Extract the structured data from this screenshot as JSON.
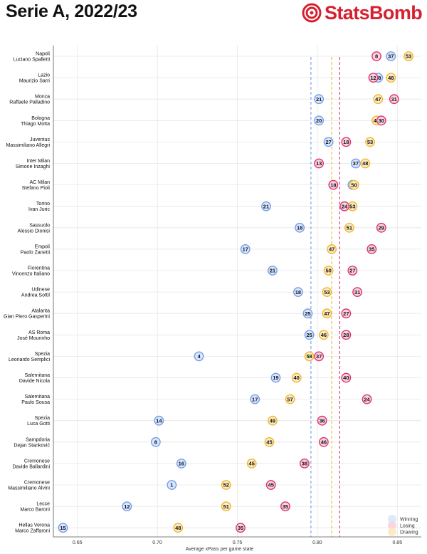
{
  "header": {
    "title": "Serie A, 2022/23",
    "logo_text": "StatsBomb"
  },
  "colors": {
    "winning": "#6f9ef0",
    "winning_fill": "#dbe6fb",
    "losing": "#e0306e",
    "losing_fill": "#f8d3e1",
    "drawing": "#f2b630",
    "drawing_fill": "#fcebc0",
    "brand": "#d62030"
  },
  "chart_data": {
    "type": "scatter",
    "xlabel": "Average xPass per game state",
    "xlim": [
      0.635,
      0.865
    ],
    "xticks": [
      "0.65",
      "0.70",
      "0.75",
      "0.80",
      "0.85"
    ],
    "xtick_values": [
      0.65,
      0.7,
      0.75,
      0.8,
      0.85
    ],
    "legend_position": "bottom-right",
    "legend": [
      {
        "key": "winning",
        "label": "Winning"
      },
      {
        "key": "losing",
        "label": "Losing"
      },
      {
        "key": "drawing",
        "label": "Drawing"
      }
    ],
    "reference_lines": [
      {
        "state": "winning",
        "value": 0.796
      },
      {
        "state": "drawing",
        "value": 0.809
      },
      {
        "state": "losing",
        "value": 0.814
      }
    ],
    "rows": [
      {
        "team": "Napoli",
        "coach": "Luciano Spalletti",
        "winning": {
          "x": 0.846,
          "n": 37
        },
        "losing": {
          "x": 0.837,
          "n": 8
        },
        "drawing": {
          "x": 0.857,
          "n": 53
        }
      },
      {
        "team": "Lazio",
        "coach": "Maurizio Sarri",
        "winning": {
          "x": 0.838,
          "n": 38
        },
        "losing": {
          "x": 0.835,
          "n": 12
        },
        "drawing": {
          "x": 0.846,
          "n": 48
        }
      },
      {
        "team": "Monza",
        "coach": "Raffaele Palladino",
        "winning": {
          "x": 0.801,
          "n": 21
        },
        "losing": {
          "x": 0.848,
          "n": 31
        },
        "drawing": {
          "x": 0.838,
          "n": 47
        }
      },
      {
        "team": "Bologna",
        "coach": "Thiago Motta",
        "winning": {
          "x": 0.801,
          "n": 20
        },
        "losing": {
          "x": 0.84,
          "n": 30
        },
        "drawing": {
          "x": 0.837,
          "n": 49
        }
      },
      {
        "team": "Juventus",
        "coach": "Massimiliano Allegri",
        "winning": {
          "x": 0.807,
          "n": 27
        },
        "losing": {
          "x": 0.818,
          "n": 18
        },
        "drawing": {
          "x": 0.833,
          "n": 53
        }
      },
      {
        "team": "Inter Milan",
        "coach": "Simone Inzaghi",
        "winning": {
          "x": 0.824,
          "n": 37
        },
        "losing": {
          "x": 0.801,
          "n": 13
        },
        "drawing": {
          "x": 0.83,
          "n": 48
        }
      },
      {
        "team": "AC Milan",
        "coach": "Stefano Pioli",
        "winning": {
          "x": 0.822,
          "n": 30
        },
        "losing": {
          "x": 0.81,
          "n": 18
        },
        "drawing": {
          "x": 0.823,
          "n": 50
        }
      },
      {
        "team": "Torino",
        "coach": "Ivan Juric",
        "winning": {
          "x": 0.768,
          "n": 21
        },
        "losing": {
          "x": 0.817,
          "n": 24
        },
        "drawing": {
          "x": 0.822,
          "n": 53
        }
      },
      {
        "team": "Sassuolo",
        "coach": "Alessio Dionisi",
        "winning": {
          "x": 0.789,
          "n": 18
        },
        "losing": {
          "x": 0.84,
          "n": 29
        },
        "drawing": {
          "x": 0.82,
          "n": 51
        }
      },
      {
        "team": "Empoli",
        "coach": "Paolo Zanetti",
        "winning": {
          "x": 0.755,
          "n": 17
        },
        "losing": {
          "x": 0.834,
          "n": 35
        },
        "drawing": {
          "x": 0.809,
          "n": 47
        }
      },
      {
        "team": "Fiorentina",
        "coach": "Vincenzo Italiano",
        "winning": {
          "x": 0.772,
          "n": 21
        },
        "losing": {
          "x": 0.822,
          "n": 27
        },
        "drawing": {
          "x": 0.807,
          "n": 50
        }
      },
      {
        "team": "Udinese",
        "coach": "Andrea Sottil",
        "winning": {
          "x": 0.788,
          "n": 18
        },
        "losing": {
          "x": 0.825,
          "n": 31
        },
        "drawing": {
          "x": 0.806,
          "n": 53
        }
      },
      {
        "team": "Atalanta",
        "coach": "Gian Piero Gasperini",
        "winning": {
          "x": 0.794,
          "n": 25
        },
        "losing": {
          "x": 0.818,
          "n": 27
        },
        "drawing": {
          "x": 0.806,
          "n": 47
        }
      },
      {
        "team": "AS Roma",
        "coach": "José Mourinho",
        "winning": {
          "x": 0.795,
          "n": 25
        },
        "losing": {
          "x": 0.818,
          "n": 28
        },
        "drawing": {
          "x": 0.804,
          "n": 46
        }
      },
      {
        "team": "Spezia",
        "coach": "Leonardo Semplici",
        "winning": {
          "x": 0.726,
          "n": 4
        },
        "losing": {
          "x": 0.801,
          "n": 37
        },
        "drawing": {
          "x": 0.795,
          "n": 58
        }
      },
      {
        "team": "Salernitana",
        "coach": "Davide Nicola",
        "winning": {
          "x": 0.774,
          "n": 19
        },
        "losing": {
          "x": 0.818,
          "n": 40
        },
        "drawing": {
          "x": 0.787,
          "n": 40
        }
      },
      {
        "team": "Salernitana",
        "coach": "Paulo Sousa",
        "winning": {
          "x": 0.761,
          "n": 17
        },
        "losing": {
          "x": 0.831,
          "n": 24
        },
        "drawing": {
          "x": 0.783,
          "n": 57
        }
      },
      {
        "team": "Spezia",
        "coach": "Luca Gotti",
        "winning": {
          "x": 0.701,
          "n": 14
        },
        "losing": {
          "x": 0.803,
          "n": 36
        },
        "drawing": {
          "x": 0.772,
          "n": 49
        }
      },
      {
        "team": "Sampdoria",
        "coach": "Dejan Stanković",
        "winning": {
          "x": 0.699,
          "n": 8
        },
        "losing": {
          "x": 0.804,
          "n": 46
        },
        "drawing": {
          "x": 0.77,
          "n": 45
        }
      },
      {
        "team": "Cremonese",
        "coach": "Davide Ballardini",
        "winning": {
          "x": 0.715,
          "n": 16
        },
        "losing": {
          "x": 0.792,
          "n": 38
        },
        "drawing": {
          "x": 0.759,
          "n": 45
        }
      },
      {
        "team": "Cremonese",
        "coach": "Massimiliano Alvini",
        "winning": {
          "x": 0.709,
          "n": 1
        },
        "losing": {
          "x": 0.771,
          "n": 45
        },
        "drawing": {
          "x": 0.743,
          "n": 52
        }
      },
      {
        "team": "Lecce",
        "coach": "Marco Baroni",
        "winning": {
          "x": 0.681,
          "n": 12
        },
        "losing": {
          "x": 0.78,
          "n": 35
        },
        "drawing": {
          "x": 0.743,
          "n": 51
        }
      },
      {
        "team": "Hellas Verona",
        "coach": "Marco Zaffaroni",
        "winning": {
          "x": 0.641,
          "n": 15
        },
        "losing": {
          "x": 0.752,
          "n": 35
        },
        "drawing": {
          "x": 0.713,
          "n": 48
        }
      }
    ]
  }
}
